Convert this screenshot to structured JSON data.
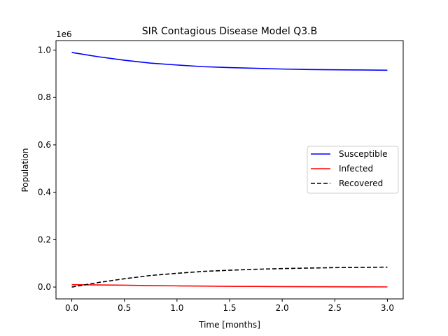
{
  "chart_data": {
    "type": "line",
    "title": "SIR Contagious Disease Model Q3.B",
    "xlabel": "Time [months]",
    "ylabel": "Population",
    "y_offset_label": "1e6",
    "xlim": [
      -0.15,
      3.15
    ],
    "ylim": [
      -0.05,
      1.04
    ],
    "xticks": [
      0.0,
      0.5,
      1.0,
      1.5,
      2.0,
      2.5,
      3.0
    ],
    "xtick_labels": [
      "0.0",
      "0.5",
      "1.0",
      "1.5",
      "2.0",
      "2.5",
      "3.0"
    ],
    "yticks": [
      0.0,
      0.2,
      0.4,
      0.6,
      0.8,
      1.0
    ],
    "ytick_labels": [
      "0.0",
      "0.2",
      "0.4",
      "0.6",
      "0.8",
      "1.0"
    ],
    "grid": false,
    "legend_position": "center-right",
    "x": [
      0.0,
      0.25,
      0.5,
      0.75,
      1.0,
      1.25,
      1.5,
      1.75,
      2.0,
      2.25,
      2.5,
      2.75,
      3.0
    ],
    "series": [
      {
        "name": "Susceptible",
        "color": "#0000ff",
        "style": "solid",
        "values": [
          0.99,
          0.972,
          0.957,
          0.945,
          0.937,
          0.93,
          0.926,
          0.923,
          0.92,
          0.918,
          0.917,
          0.916,
          0.915
        ]
      },
      {
        "name": "Infected",
        "color": "#ff0000",
        "style": "solid",
        "values": [
          0.01,
          0.009,
          0.008,
          0.006,
          0.005,
          0.004,
          0.003,
          0.0025,
          0.002,
          0.0015,
          0.001,
          0.0008,
          0.0006
        ]
      },
      {
        "name": "Recovered",
        "color": "#000000",
        "style": "dashed",
        "values": [
          0.0,
          0.019,
          0.035,
          0.049,
          0.058,
          0.066,
          0.071,
          0.075,
          0.078,
          0.08,
          0.082,
          0.083,
          0.084
        ]
      }
    ]
  }
}
